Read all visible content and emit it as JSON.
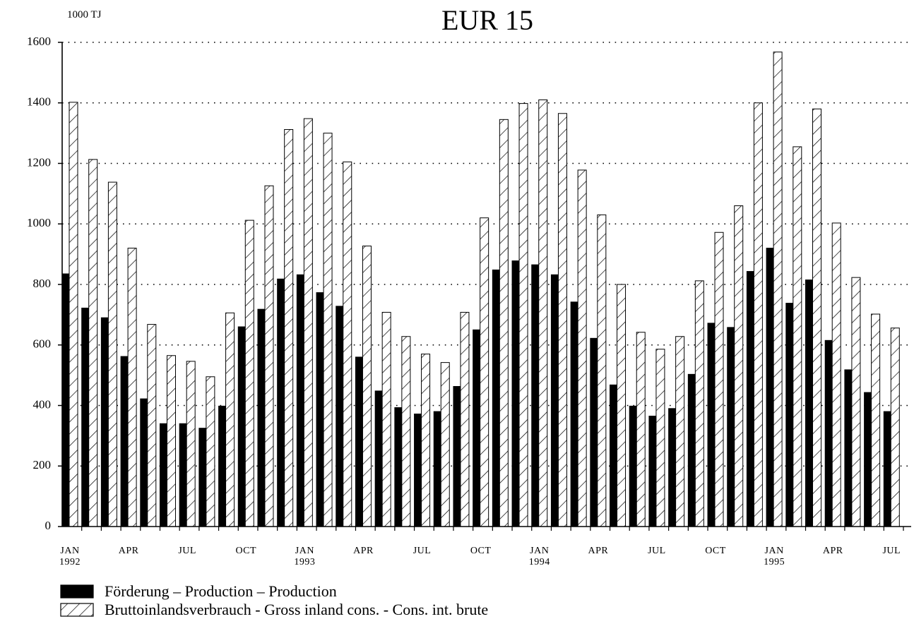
{
  "chart_data": {
    "type": "bar",
    "title": "EUR 15",
    "y_axis_label": "1000 TJ",
    "categories": [
      "JAN",
      null,
      null,
      "APR",
      null,
      null,
      "JUL",
      null,
      null,
      "OCT",
      null,
      null,
      "JAN",
      null,
      null,
      "APR",
      null,
      null,
      "JUL",
      null,
      null,
      "OCT",
      null,
      null,
      "JAN",
      null,
      null,
      "APR",
      null,
      null,
      "JUL",
      null,
      null,
      "OCT",
      null,
      null,
      "JAN",
      null,
      null,
      "APR",
      null,
      null,
      "JUL"
    ],
    "years": [
      "1992",
      null,
      null,
      null,
      null,
      null,
      null,
      null,
      null,
      null,
      null,
      null,
      "1993",
      null,
      null,
      null,
      null,
      null,
      null,
      null,
      null,
      null,
      null,
      null,
      "1994",
      null,
      null,
      null,
      null,
      null,
      null,
      null,
      null,
      null,
      null,
      null,
      "1995",
      null,
      null,
      null,
      null,
      null,
      null
    ],
    "series": [
      {
        "name": "Förderung – Production – Production",
        "color": "#000000",
        "hatch": false,
        "values": [
          835,
          722,
          690,
          562,
          422,
          340,
          340,
          325,
          398,
          660,
          718,
          818,
          832,
          773,
          728,
          560,
          448,
          393,
          372,
          380,
          463,
          650,
          848,
          878,
          865,
          832,
          742,
          622,
          468,
          398,
          365,
          390,
          503,
          672,
          658,
          843,
          920,
          738,
          815,
          615,
          518,
          443,
          380
        ]
      },
      {
        "name": "Bruttoinlandsverbrauch - Gross inland cons. - Cons. int. brute",
        "color": "#000000",
        "hatch": true,
        "values": [
          1402,
          1213,
          1138,
          920,
          668,
          565,
          546,
          495,
          706,
          1012,
          1126,
          1312,
          1348,
          1300,
          1205,
          927,
          708,
          628,
          570,
          542,
          708,
          1020,
          1345,
          1398,
          1410,
          1365,
          1178,
          1030,
          800,
          642,
          586,
          628,
          812,
          972,
          1060,
          1400,
          1568,
          1255,
          1380,
          1003,
          823,
          702,
          656
        ]
      }
    ],
    "ylim": [
      0,
      1600
    ],
    "yticks": [
      0,
      200,
      400,
      600,
      800,
      1000,
      1200,
      1400,
      1600
    ],
    "grid": true,
    "legend": "bottom-left"
  }
}
